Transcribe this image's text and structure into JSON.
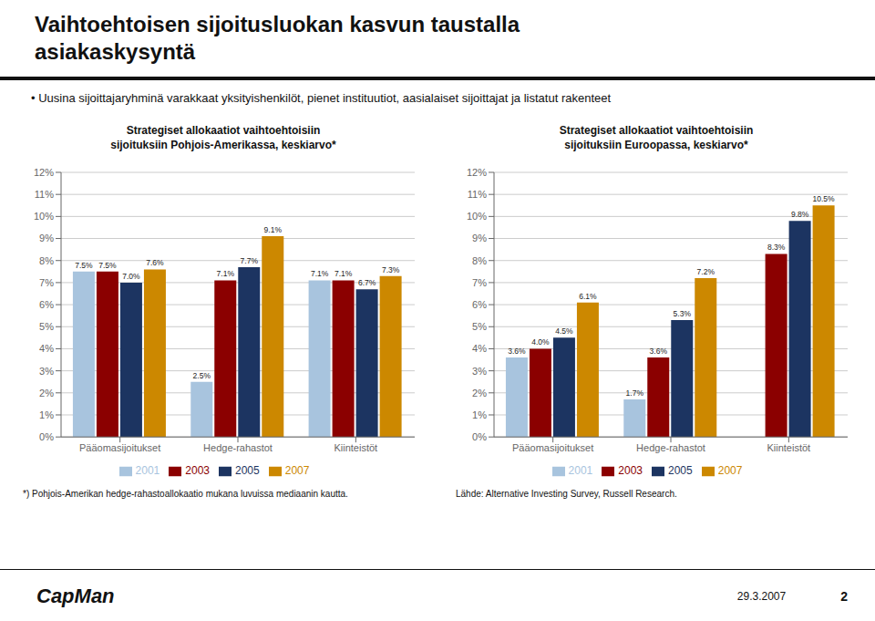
{
  "title": "Vaihtoehtoisen sijoitusluokan kasvun taustalla\nasiakaskysyntä",
  "subtitle": "• Uusina sijoittajaryhminä varakkaat yksityishenkilöt, pienet instituutiot, aasialaiset sijoittajat ja listatut rakenteet",
  "annotations": [
    "CapMan",
    "29.3.2007",
    "2"
  ],
  "chart_data": [
    {
      "type": "bar",
      "title": "Strategiset allokaatiot vaihtoehtoisiin\nsijoituksiin Pohjois-Amerikassa, keskiarvo*",
      "categories": [
        "Pääomasijoitukset",
        "Hedge-rahastot",
        "Kiinteistöt"
      ],
      "series": [
        {
          "name": "2001",
          "color": "#a8c4de",
          "values": [
            7.5,
            2.5,
            7.1
          ],
          "value_labels": [
            "7.5%",
            "2.5%",
            "7.1%"
          ]
        },
        {
          "name": "2003",
          "color": "#8b0000",
          "values": [
            7.5,
            7.1,
            7.1
          ],
          "value_labels": [
            "7.5%",
            "7.1%",
            "7.1%"
          ]
        },
        {
          "name": "2005",
          "color": "#1c3461",
          "values": [
            7.0,
            7.7,
            6.7
          ],
          "value_labels": [
            "7.0%",
            "7.7%",
            "6.7%"
          ]
        },
        {
          "name": "2007",
          "color": "#cc8800",
          "values": [
            7.6,
            9.1,
            7.3
          ],
          "value_labels": [
            "7.6%",
            "9.1%",
            "7.3%"
          ]
        }
      ],
      "ylim": [
        0,
        12
      ],
      "yticks": [
        {
          "value": 0,
          "label": "0%"
        },
        {
          "value": 1,
          "label": "1%"
        },
        {
          "value": 2,
          "label": "2%"
        },
        {
          "value": 3,
          "label": "3%"
        },
        {
          "value": 4,
          "label": "4%"
        },
        {
          "value": 5,
          "label": "5%"
        },
        {
          "value": 6,
          "label": "6%"
        },
        {
          "value": 7,
          "label": "7%"
        },
        {
          "value": 8,
          "label": "8%"
        },
        {
          "value": 9,
          "label": "9%"
        },
        {
          "value": 10,
          "label": "10%"
        },
        {
          "value": 11,
          "label": "11%"
        },
        {
          "value": 12,
          "label": "12%"
        }
      ],
      "grid": true,
      "legend": "bottom",
      "data_labels": true,
      "annotations": [
        "*) Pohjois-Amerikan hedge-rahastoallokaatio mukana luvuissa mediaanin kautta."
      ]
    },
    {
      "type": "bar",
      "title": "Strategiset allokaatiot vaihtoehtoisiin\nsijoituksiin Euroopassa, keskiarvo*",
      "categories": [
        "Pääomasijoitukset",
        "Hedge-rahastot",
        "Kiinteistöt"
      ],
      "series": [
        {
          "name": "2001",
          "color": "#a8c4de",
          "values": [
            3.6,
            1.7,
            0.0
          ],
          "value_labels": [
            "3.6%",
            "1.7%",
            null
          ]
        },
        {
          "name": "2003",
          "color": "#8b0000",
          "values": [
            4.0,
            3.6,
            8.3
          ],
          "value_labels": [
            "4.0%",
            "3.6%",
            "8.3%"
          ]
        },
        {
          "name": "2005",
          "color": "#1c3461",
          "values": [
            4.5,
            5.3,
            9.8
          ],
          "value_labels": [
            "4.5%",
            "5.3%",
            "9.8%"
          ]
        },
        {
          "name": "2007",
          "color": "#cc8800",
          "values": [
            6.1,
            7.2,
            10.5
          ],
          "value_labels": [
            "6.1%",
            "7.2%",
            "10.5%"
          ]
        }
      ],
      "ylim": [
        0,
        12
      ],
      "yticks": [
        {
          "value": 0,
          "label": "0%"
        },
        {
          "value": 1,
          "label": "1%"
        },
        {
          "value": 2,
          "label": "2%"
        },
        {
          "value": 3,
          "label": "3%"
        },
        {
          "value": 4,
          "label": "4%"
        },
        {
          "value": 5,
          "label": "5%"
        },
        {
          "value": 6,
          "label": "6%"
        },
        {
          "value": 7,
          "label": "7%"
        },
        {
          "value": 8,
          "label": "8%"
        },
        {
          "value": 9,
          "label": "9%"
        },
        {
          "value": 10,
          "label": "10%"
        },
        {
          "value": 11,
          "label": "11%"
        },
        {
          "value": 12,
          "label": "12%"
        }
      ],
      "grid": true,
      "legend": "bottom",
      "data_labels": true,
      "annotations": [
        "Lähde: Alternative Investing Survey, Russell Research."
      ]
    }
  ]
}
